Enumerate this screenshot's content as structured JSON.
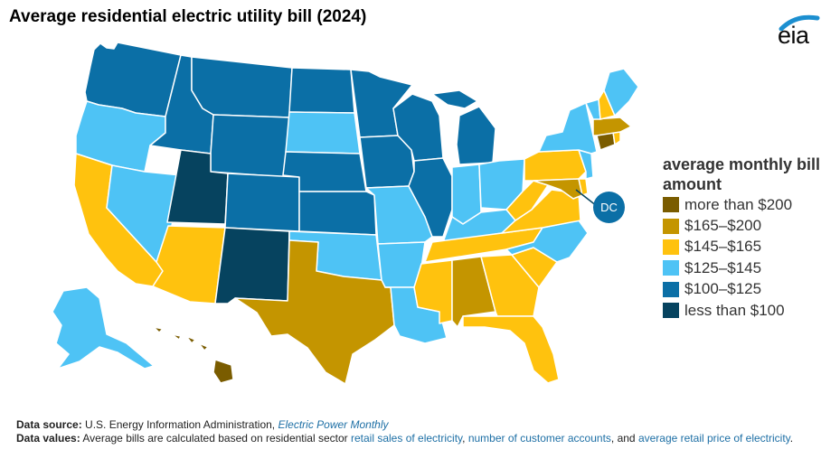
{
  "title": "Average residential electric utility bill (2024)",
  "logo": {
    "text": "eia",
    "icon": "eia-logo-arc-icon"
  },
  "legend": {
    "title": "average monthly bill amount",
    "items": [
      {
        "label": "more than $200",
        "color": "#7a5c00"
      },
      {
        "label": "$165–$200",
        "color": "#c49500"
      },
      {
        "label": "$145–$165",
        "color": "#ffc20e"
      },
      {
        "label": "$125–$145",
        "color": "#4ec3f5"
      },
      {
        "label": "$100–$125",
        "color": "#0b6fa6"
      },
      {
        "label": "less than $100",
        "color": "#06435f"
      }
    ]
  },
  "dc_label": "DC",
  "footer": {
    "source_label": "Data source:",
    "source_text": "U.S. Energy Information Administration, ",
    "source_link": "Electric Power Monthly",
    "values_label": "Data values:",
    "values_text_1": "Average bills are calculated based on residential sector ",
    "values_link_1": "retail sales of electricity",
    "values_text_2": ", ",
    "values_link_2": "number of customer accounts",
    "values_text_3": ", and ",
    "values_link_3": "average retail price of electricity",
    "values_text_4": "."
  },
  "state_colors": {
    "WA": "#0b6fa6",
    "OR": "#4ec3f5",
    "CA": "#ffc20e",
    "NV": "#4ec3f5",
    "ID": "#0b6fa6",
    "MT": "#0b6fa6",
    "WY": "#0b6fa6",
    "UT": "#06435f",
    "AZ": "#ffc20e",
    "CO": "#0b6fa6",
    "NM": "#06435f",
    "ND": "#0b6fa6",
    "SD": "#4ec3f5",
    "NE": "#0b6fa6",
    "KS": "#0b6fa6",
    "OK": "#4ec3f5",
    "TX": "#c49500",
    "MN": "#0b6fa6",
    "IA": "#0b6fa6",
    "MO": "#4ec3f5",
    "AR": "#4ec3f5",
    "LA": "#4ec3f5",
    "WI": "#0b6fa6",
    "IL": "#0b6fa6",
    "MI": "#0b6fa6",
    "IN": "#4ec3f5",
    "OH": "#4ec3f5",
    "KY": "#4ec3f5",
    "TN": "#ffc20e",
    "MS": "#ffc20e",
    "AL": "#c49500",
    "GA": "#ffc20e",
    "FL": "#ffc20e",
    "SC": "#ffc20e",
    "NC": "#4ec3f5",
    "VA": "#ffc20e",
    "WV": "#ffc20e",
    "PA": "#ffc20e",
    "NY": "#4ec3f5",
    "NJ": "#4ec3f5",
    "DE": "#ffc20e",
    "MD": "#c49500",
    "CT": "#7a5c00",
    "RI": "#ffc20e",
    "MA": "#c49500",
    "VT": "#4ec3f5",
    "NH": "#ffc20e",
    "ME": "#4ec3f5",
    "AK": "#4ec3f5",
    "HI": "#7a5c00"
  }
}
